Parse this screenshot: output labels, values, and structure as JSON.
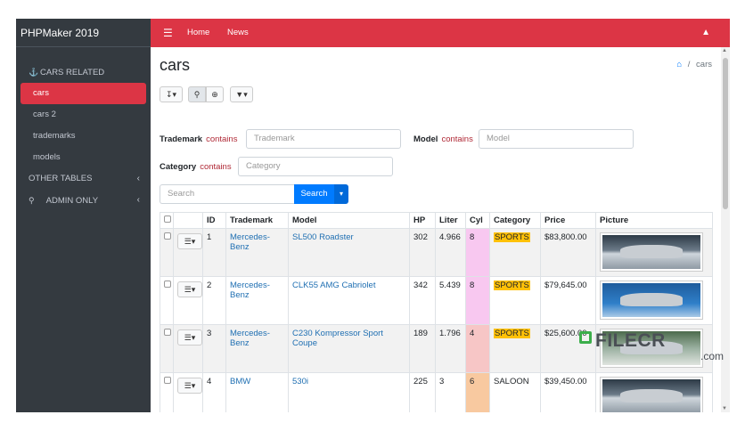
{
  "sidebar": {
    "brand": "PHPMaker 2019",
    "section_cars": "CARS RELATED",
    "items": [
      "cars",
      "cars 2",
      "trademarks",
      "models"
    ],
    "other_tables": "OTHER TABLES",
    "admin_only": "ADMIN ONLY"
  },
  "topbar": {
    "home": "Home",
    "news": "News"
  },
  "page": {
    "title": "cars",
    "breadcrumb_current": "cars"
  },
  "filters": {
    "trademark_label": "Trademark",
    "trademark_op": "contains",
    "trademark_placeholder": "Trademark",
    "model_label": "Model",
    "model_op": "contains",
    "model_placeholder": "Model",
    "category_label": "Category",
    "category_op": "contains",
    "category_placeholder": "Category"
  },
  "search": {
    "placeholder": "Search",
    "button": "Search"
  },
  "table": {
    "columns": [
      "ID",
      "Trademark",
      "Model",
      "HP",
      "Liter",
      "Cyl",
      "Category",
      "Price",
      "Picture"
    ],
    "rows": [
      {
        "id": "1",
        "trademark_l1": "Mercedes-",
        "trademark_l2": "Benz",
        "model_l1": "SL500 Roadster",
        "model_l2": "",
        "hp": "302",
        "liter": "4.966",
        "cyl": "8",
        "category": "SPORTS",
        "price": "$83,800.00"
      },
      {
        "id": "2",
        "trademark_l1": "Mercedes-",
        "trademark_l2": "Benz",
        "model_l1": "CLK55 AMG Cabriolet",
        "model_l2": "",
        "hp": "342",
        "liter": "5.439",
        "cyl": "8",
        "category": "SPORTS",
        "price": "$79,645.00"
      },
      {
        "id": "3",
        "trademark_l1": "Mercedes-",
        "trademark_l2": "Benz",
        "model_l1": "C230 Kompressor Sport",
        "model_l2": "Coupe",
        "hp": "189",
        "liter": "1.796",
        "cyl": "4",
        "category": "SPORTS",
        "price": "$25,600.00"
      },
      {
        "id": "4",
        "trademark_l1": "BMW",
        "trademark_l2": "",
        "model_l1": "530i",
        "model_l2": "",
        "hp": "225",
        "liter": "3",
        "cyl": "6",
        "category": "SALOON",
        "price": "$39,450.00"
      }
    ]
  },
  "colors": {
    "brand_red": "#dc3545",
    "sidebar_bg": "#343a40",
    "primary": "#007bff",
    "cyl_8": "#f8c8f0",
    "cyl_4": "#f7c6c6",
    "cyl_6": "#f8c9a0",
    "sports_badge": "#ffc107"
  },
  "icons": [
    "car-icon",
    "hamburger-icon",
    "bell-icon",
    "home-icon",
    "download-icon",
    "search-icon",
    "zoom-icon",
    "filter-icon",
    "key-icon",
    "chevron-left-icon"
  ],
  "watermark": {
    "text": "FILECR",
    "suffix": ".com"
  }
}
